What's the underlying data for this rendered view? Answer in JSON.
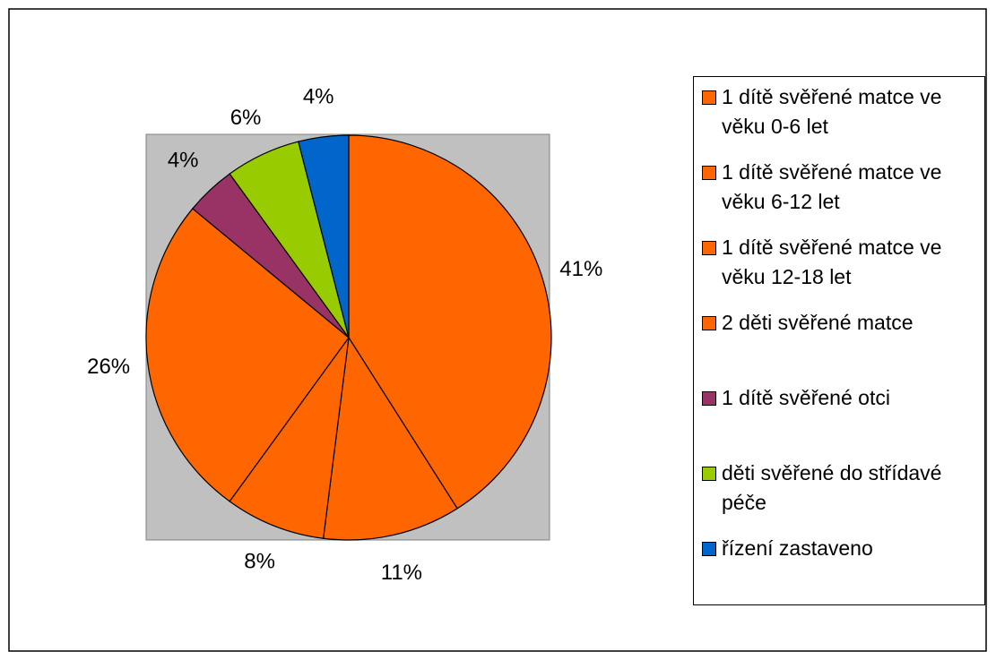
{
  "chart_data": {
    "type": "pie",
    "categories": [
      "1 dítě svěřené matce ve věku 0-6 let",
      "1 dítě svěřené matce ve věku 6-12 let",
      "1 dítě svěřené matce ve věku 12-18 let",
      "2 děti svěřené matce",
      "1 dítě svěřené otci",
      "děti svěřené do střídavé péče",
      "řízení zastaveno"
    ],
    "values": [
      41,
      11,
      8,
      26,
      4,
      6,
      4
    ],
    "value_labels": [
      "41%",
      "11%",
      "8%",
      "26%",
      "4%",
      "6%",
      "4%"
    ],
    "colors": [
      "#ff6600",
      "#ff6600",
      "#ff6600",
      "#ff6600",
      "#993366",
      "#99cc00",
      "#0066cc"
    ],
    "legend": "right"
  }
}
